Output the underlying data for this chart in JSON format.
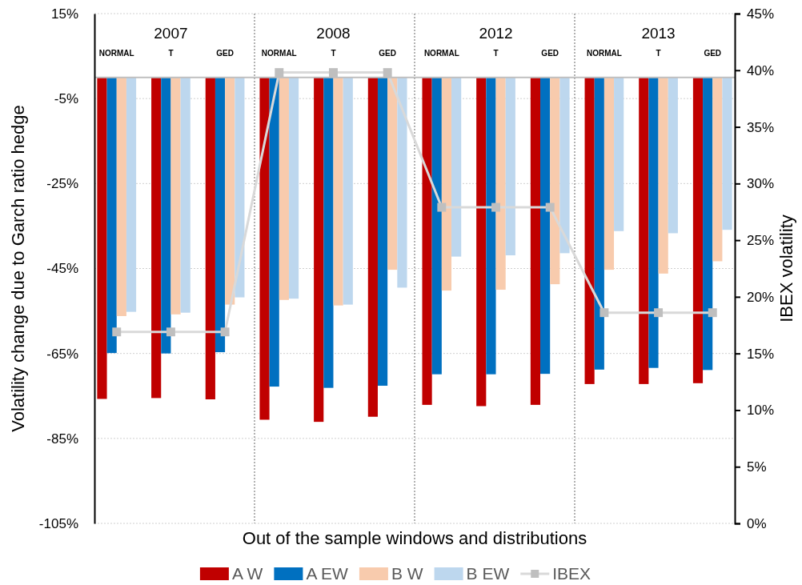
{
  "chart_data": {
    "type": "bar",
    "xlabel": "Out of the sample windows and distributions",
    "ylabel": "Volatility change due to  Garch ratio hedge",
    "y2label": "IBEX volatility",
    "categories": [
      "NORMAL",
      "T",
      "GED",
      "NORMAL",
      "T",
      "GED",
      "NORMAL",
      "T",
      "GED",
      "NORMAL",
      "T",
      "GED"
    ],
    "annotations": [
      "2007",
      "2008",
      "2012",
      "2013"
    ],
    "series": [
      {
        "name": "A W",
        "color": "#c00000",
        "values": [
          -75.7,
          -75.5,
          -75.8,
          -80.6,
          -81.1,
          -79.9,
          -77.1,
          -77.4,
          -77.1,
          -72.2,
          -72.2,
          -72.0
        ]
      },
      {
        "name": "A EW",
        "color": "#0070c0",
        "values": [
          -64.9,
          -65.0,
          -64.7,
          -72.8,
          -73.1,
          -72.6,
          -69.9,
          -69.9,
          -69.8,
          -68.8,
          -68.4,
          -68.9
        ]
      },
      {
        "name": "B W",
        "color": "#f8cbad",
        "values": [
          -56.2,
          -55.8,
          -53.5,
          -52.4,
          -53.7,
          -45.3,
          -50.2,
          -50.0,
          -48.7,
          -45.3,
          -46.2,
          -43.3
        ]
      },
      {
        "name": "B EW",
        "color": "#bdd7ee",
        "values": [
          -55.2,
          -55.4,
          -51.8,
          -52.1,
          -53.5,
          -49.5,
          -42.2,
          -41.9,
          -41.4,
          -36.2,
          -36.7,
          -35.9
        ]
      },
      {
        "name": "IBEX",
        "type": "line",
        "axis": "y2",
        "color": "#bfbfbf",
        "marker": "square",
        "values": [
          16.9,
          16.9,
          16.9,
          39.8,
          39.8,
          39.8,
          27.9,
          27.9,
          27.9,
          18.6,
          18.6,
          18.6
        ]
      }
    ],
    "ylim": [
      -105,
      15
    ],
    "yticks": [
      {
        "value": -105,
        "label": "-105%"
      },
      {
        "value": -85,
        "label": "-85%"
      },
      {
        "value": -65,
        "label": "-65%"
      },
      {
        "value": -45,
        "label": "-45%"
      },
      {
        "value": -25,
        "label": "-25%"
      },
      {
        "value": -5,
        "label": "-5%"
      },
      {
        "value": 15,
        "label": "15%"
      }
    ],
    "y2lim": [
      0,
      45
    ],
    "y2ticks": [
      {
        "value": 0,
        "label": "0%"
      },
      {
        "value": 5,
        "label": "5%"
      },
      {
        "value": 10,
        "label": "10%"
      },
      {
        "value": 15,
        "label": "15%"
      },
      {
        "value": 20,
        "label": "20%"
      },
      {
        "value": 25,
        "label": "25%"
      },
      {
        "value": 30,
        "label": "30%"
      },
      {
        "value": 35,
        "label": "35%"
      },
      {
        "value": 40,
        "label": "40%"
      },
      {
        "value": 45,
        "label": "45%"
      }
    ],
    "grid": "y",
    "legend": "bottom"
  }
}
